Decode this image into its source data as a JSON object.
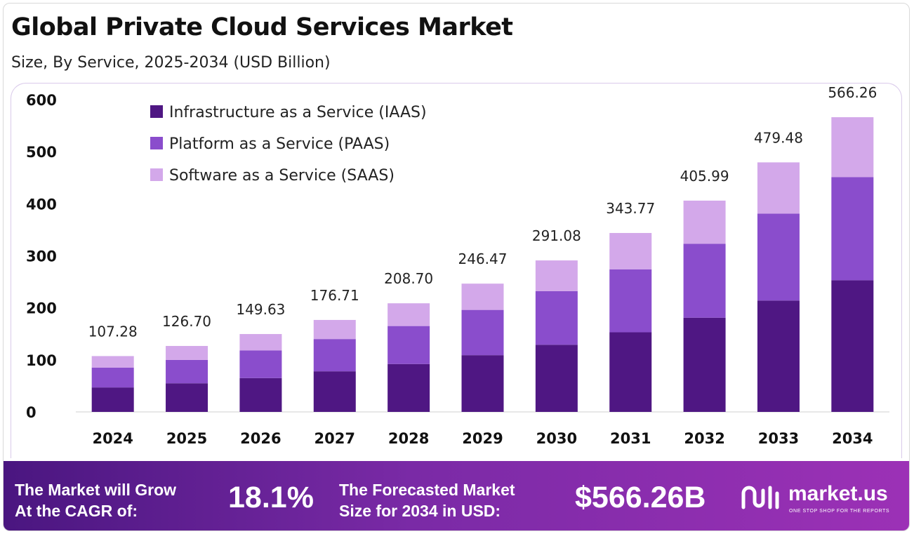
{
  "header": {
    "title": "Global Private Cloud Services Market",
    "subtitle": "Size, By Service, 2025-2034 (USD Billion)"
  },
  "chart_data": {
    "type": "bar",
    "stacked": true,
    "categories": [
      "2024",
      "2025",
      "2026",
      "2027",
      "2028",
      "2029",
      "2030",
      "2031",
      "2032",
      "2033",
      "2034"
    ],
    "series": [
      {
        "name": "Infrastructure as a Service (IAAS)",
        "color": "#4f1783",
        "values": [
          47,
          55,
          65,
          78,
          92,
          109,
          129,
          153,
          181,
          214,
          253
        ]
      },
      {
        "name": "Platform as a Service (PAAS)",
        "color": "#8a4dcc",
        "values": [
          38,
          45,
          53,
          62,
          73,
          87,
          103,
          121,
          142,
          167,
          198
        ]
      },
      {
        "name": "Software as a Service (SAAS)",
        "color": "#d3a8ea",
        "values": [
          22.28,
          26.7,
          31.63,
          36.71,
          43.7,
          50.47,
          59.08,
          69.77,
          82.99,
          98.48,
          115.26
        ]
      }
    ],
    "totals": [
      "107.28",
      "126.70",
      "149.63",
      "176.71",
      "208.70",
      "246.47",
      "291.08",
      "343.77",
      "405.99",
      "479.48",
      "566.26"
    ],
    "yticks": [
      0,
      100,
      200,
      300,
      400,
      500,
      600
    ],
    "ylim": [
      0,
      600
    ],
    "legend_position": "top-left"
  },
  "footer": {
    "cagr_label_line1": "The Market will Grow",
    "cagr_label_line2": "At the CAGR of:",
    "cagr_value": "18.1%",
    "forecast_label_line1": "The Forecasted Market",
    "forecast_label_line2": "Size for 2034 in USD:",
    "forecast_value": "$566.26B",
    "brand_name": "market.us",
    "brand_tagline": "ONE STOP SHOP FOR THE REPORTS"
  }
}
